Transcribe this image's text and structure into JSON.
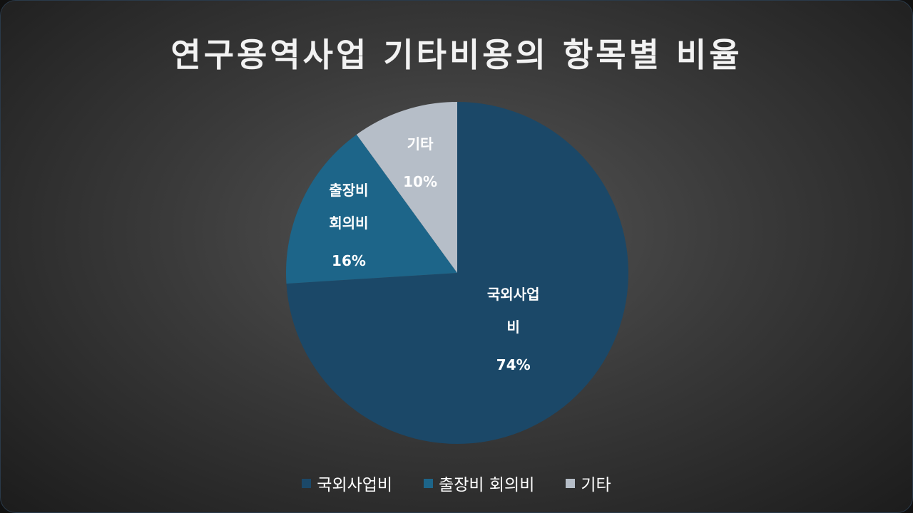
{
  "chart_data": {
    "type": "pie",
    "title": "연구용역사업 기타비용의 항목별 비율",
    "categories": [
      "국외사업비",
      "출장비 회의비",
      "기타"
    ],
    "values": [
      74,
      16,
      10
    ],
    "value_labels": [
      "74%",
      "16%",
      "10%"
    ],
    "colors": [
      "#1b4868",
      "#1d6589",
      "#b6bec8"
    ],
    "legend": "bottom"
  }
}
